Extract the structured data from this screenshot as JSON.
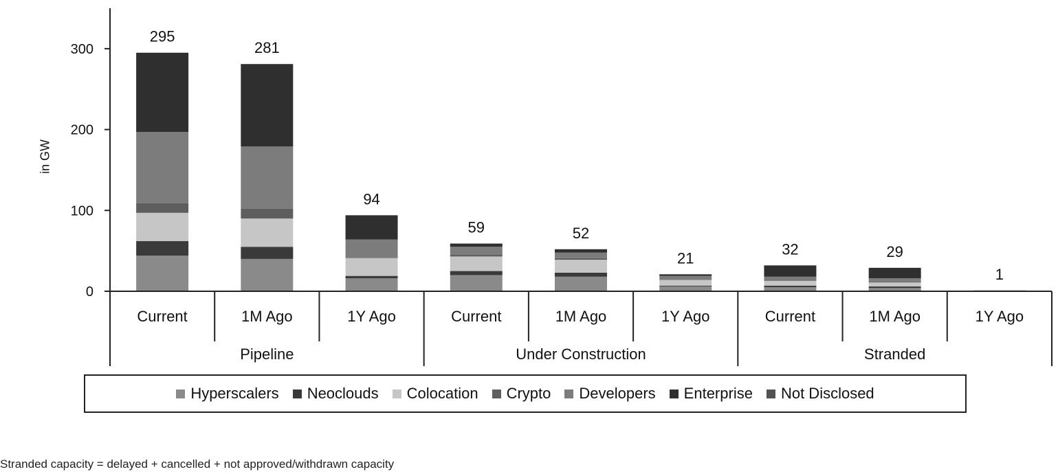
{
  "chart_data": {
    "type": "bar",
    "stacked": true,
    "ylabel": "in GW",
    "ylim": [
      0,
      350
    ],
    "yticks": [
      0,
      100,
      200,
      300
    ],
    "groups": [
      "Pipeline",
      "Under Construction",
      "Stranded"
    ],
    "categories": [
      "Current",
      "1M Ago",
      "1Y Ago",
      "Current",
      "1M Ago",
      "1Y Ago",
      "Current",
      "1M Ago",
      "1Y Ago"
    ],
    "totals": [
      "295",
      "281",
      "94",
      "59",
      "52",
      "21",
      "32",
      "29",
      "1"
    ],
    "series": [
      {
        "name": "Hyperscalers",
        "color": "#8a8a8a",
        "values": [
          44,
          40,
          16,
          20,
          18,
          6,
          5,
          4,
          0.2
        ]
      },
      {
        "name": "Neoclouds",
        "color": "#3a3a3a",
        "values": [
          18,
          15,
          3,
          5,
          5,
          1,
          2,
          2,
          0.1
        ]
      },
      {
        "name": "Colocation",
        "color": "#c6c6c6",
        "values": [
          35,
          35,
          22,
          18,
          16,
          7,
          6,
          5,
          0.2
        ]
      },
      {
        "name": "Crypto",
        "color": "#5e5e5e",
        "values": [
          12,
          12,
          0,
          2,
          2,
          0,
          1,
          1,
          0
        ]
      },
      {
        "name": "Developers",
        "color": "#7c7c7c",
        "values": [
          88,
          77,
          23,
          10,
          7,
          5,
          4,
          4,
          0.2
        ]
      },
      {
        "name": "Enterprise",
        "color": "#2f2f2f",
        "values": [
          98,
          102,
          30,
          4,
          4,
          2,
          14,
          13,
          0.3
        ]
      },
      {
        "name": "Not Disclosed",
        "color": "#525252",
        "values": [
          0,
          0,
          0,
          0,
          0,
          0,
          0,
          0,
          0
        ]
      }
    ],
    "legend_position": "bottom",
    "grid": false
  },
  "footnote": "Stranded capacity = delayed + cancelled + not approved/withdrawn capacity"
}
